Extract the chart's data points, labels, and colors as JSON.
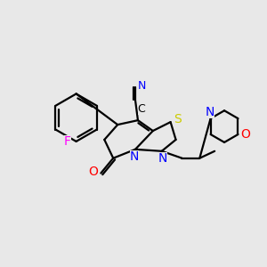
{
  "background_color": "#e8e8e8",
  "atom_colors": {
    "C": "#000000",
    "N": "#0000ff",
    "O": "#ff0000",
    "F": "#ff00ff",
    "S": "#cccc00"
  },
  "figsize": [
    3.0,
    3.0
  ],
  "dpi": 100
}
